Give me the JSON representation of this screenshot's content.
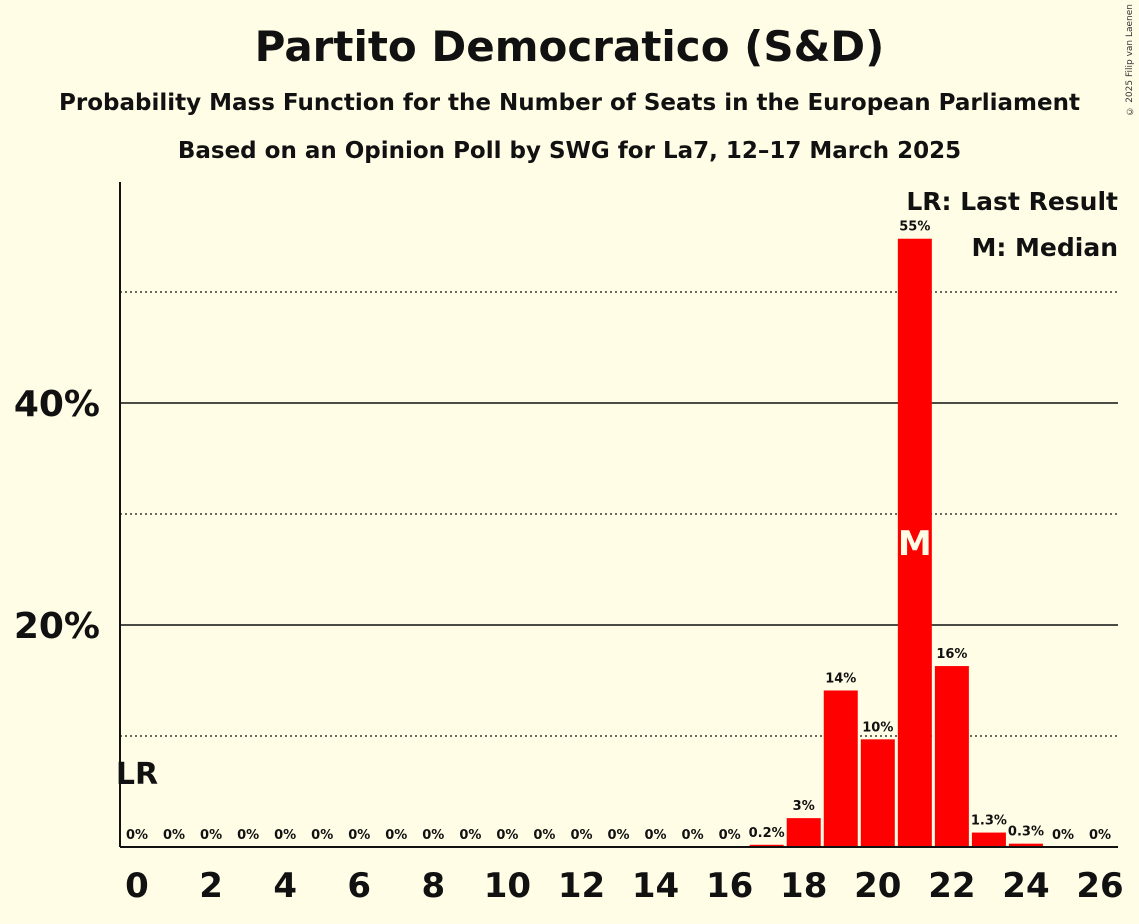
{
  "chart_data": {
    "type": "bar",
    "title": "Partito Democratico (S&D)",
    "subtitle": "Probability Mass Function for the Number of Seats in the European Parliament",
    "subtitle2": "Based on an Opinion Poll by SWG for La7, 12–17 March 2025",
    "copyright": "© 2025 Filip van Laenen",
    "xlabel": "",
    "ylabel": "",
    "x": [
      0,
      1,
      2,
      3,
      4,
      5,
      6,
      7,
      8,
      9,
      10,
      11,
      12,
      13,
      14,
      15,
      16,
      17,
      18,
      19,
      20,
      21,
      22,
      23,
      24,
      25,
      26
    ],
    "values": [
      0,
      0,
      0,
      0,
      0,
      0,
      0,
      0,
      0,
      0,
      0,
      0,
      0,
      0,
      0,
      0,
      0,
      0.2,
      2.6,
      14.1,
      9.7,
      54.8,
      16.3,
      1.3,
      0.3,
      0,
      0
    ],
    "data_labels": [
      "0%",
      "0%",
      "0%",
      "0%",
      "0%",
      "0%",
      "0%",
      "0%",
      "0%",
      "0%",
      "0%",
      "0%",
      "0%",
      "0%",
      "0%",
      "0%",
      "0%",
      "0.2%",
      "3%",
      "14%",
      "10%",
      "55%",
      "16%",
      "1.3%",
      "0.3%",
      "0%",
      "0%"
    ],
    "x_tick_labels": [
      "0",
      "2",
      "4",
      "6",
      "8",
      "10",
      "12",
      "14",
      "16",
      "18",
      "20",
      "22",
      "24",
      "26"
    ],
    "y_ticks": [
      {
        "value": 20,
        "label": "20%"
      },
      {
        "value": 40,
        "label": "40%"
      }
    ],
    "y_dotted_gridlines": [
      10,
      30,
      50
    ],
    "ylim": [
      0,
      60
    ],
    "last_result": {
      "seats": 0,
      "label": "LR"
    },
    "median": {
      "seats": 21,
      "label": "M"
    },
    "legend": [
      "LR: Last Result",
      "M: Median"
    ],
    "legend_position": "top-right",
    "bar_color": "#ff0000",
    "background": "#fffde6"
  }
}
